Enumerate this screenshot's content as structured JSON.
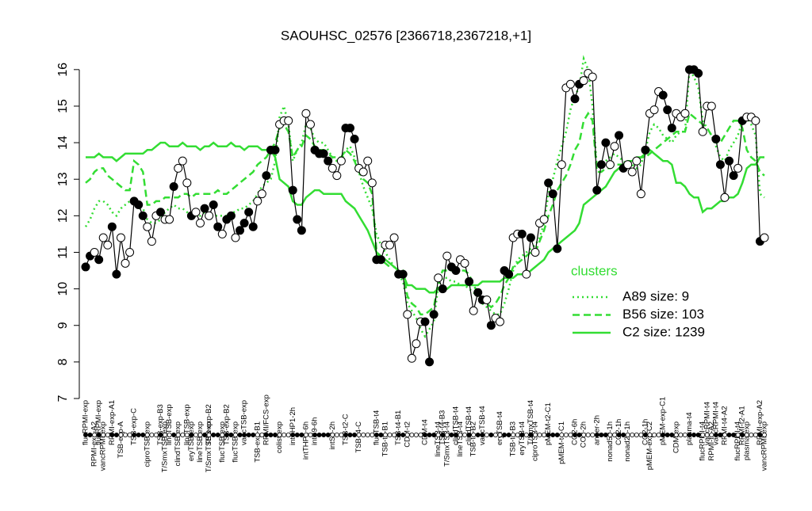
{
  "chart_data": {
    "type": "line",
    "title": "SAOUHSC_02576 [2366718,2367218,+1]",
    "categories": [
      null,
      null,
      "RPMI-exp-A2",
      null,
      "vancRPMI-exp",
      null,
      null,
      null,
      "TSB-exp-A",
      null,
      null,
      null,
      null,
      null,
      "ciproTSB-exp",
      null,
      null,
      null,
      "T/SmxTSB-exp",
      null,
      null,
      "clindTSB-exp",
      null,
      null,
      "eryTSB-exp",
      null,
      "lineTSB-exp",
      null,
      "T/SmxTSB-exp",
      null,
      null,
      "flucTSB-exp",
      null,
      null,
      "flucTSB-exp",
      null,
      null,
      null,
      null,
      "TSB-exp-B1",
      null,
      null,
      null,
      null,
      "colist-exp",
      null,
      null,
      null,
      null,
      null,
      "intTHP1-6h",
      null,
      null,
      null,
      null,
      null,
      "intS9-2h",
      null,
      null,
      null,
      null,
      null,
      "TSB-t4-C",
      null,
      null,
      null,
      null,
      null,
      "TSB-t2-B1",
      null,
      null,
      null,
      null,
      "CDM-t2",
      null,
      null,
      null,
      null,
      null,
      null,
      "lineTSB-t4",
      null,
      "T/SmxTSB-t4",
      null,
      null,
      "lineTSB-t4",
      null,
      null,
      "TSB-t4-B2",
      null,
      null,
      null,
      null,
      null,
      null,
      null,
      null,
      "TSB-t4-B3",
      null,
      "eryTSB-t4",
      null,
      null,
      "ciproTSB-t4",
      null,
      null,
      null,
      null,
      null,
      "pMEM-t4-C1",
      null,
      null,
      null,
      null,
      "CO2-2h",
      null,
      null,
      null,
      null,
      null,
      "nonad50-1h",
      null,
      null,
      null,
      "nonad25-1h",
      null,
      null,
      null,
      null,
      "pMEM-exp-C2",
      null,
      null,
      null,
      null,
      null,
      "CDM-exp",
      null,
      null,
      null,
      null,
      null,
      "flucRPMI-t4",
      null,
      "RPMI-t4-A2",
      null,
      null,
      null,
      null,
      null,
      "flucRPMI-t4",
      null,
      "plasma-exp",
      null,
      null,
      null,
      "vancRPMI-exp"
    ],
    "categories2": [
      "flucRPMI-exp",
      null,
      null,
      "flucRPMI-exp",
      null,
      null,
      "RPMI-exp-A1",
      null,
      null,
      null,
      null,
      "TSB-exp-C",
      null,
      null,
      null,
      null,
      null,
      "TSB-exp-B3",
      null,
      "lineTSB-exp",
      null,
      null,
      null,
      "lineTSB-exp",
      null,
      null,
      null,
      null,
      "TSB-exp-B2",
      null,
      null,
      null,
      "TSB-exp-B2",
      null,
      null,
      null,
      "vancTSB-exp",
      null,
      null,
      null,
      null,
      "RPMI/FCS-exp",
      null,
      null,
      null,
      null,
      null,
      "intTHP1-2h",
      null,
      null,
      null,
      null,
      "intS9-6h",
      null,
      null,
      null,
      null,
      null,
      null,
      "TSB-t2-C",
      null,
      null,
      null,
      null,
      null,
      null,
      "flucTSB-t4",
      null,
      null,
      null,
      null,
      "TSB-t4-B1",
      null,
      null,
      null,
      null,
      null,
      "CDM-t4",
      null,
      null,
      null,
      "TSB-t4-B3",
      null,
      null,
      "clindTSB-t4",
      null,
      null,
      "clindTSB-t4",
      null,
      null,
      "vancTSB-t4",
      null,
      null,
      null,
      "eryTSB-t4",
      null,
      null,
      null,
      null,
      null,
      null,
      "T/SmxTSB-t4",
      null,
      null,
      null,
      "pMEM-t2-C1",
      null,
      null,
      null,
      null,
      null,
      "CO2-6h",
      null,
      null,
      null,
      null,
      "anaer-2h",
      null,
      null,
      null,
      null,
      "CO2-1h",
      null,
      null,
      null,
      null,
      null,
      "CO2-1h",
      null,
      null,
      null,
      "pMEM-exp-C1",
      null,
      null,
      null,
      null,
      null,
      "plasma-t4",
      null,
      null,
      null,
      "vancRPMI-t4",
      null,
      "vancRPMI-t4",
      null,
      "RPMI-t4-A2",
      null,
      null,
      null,
      "RPMI-t2-A1",
      null,
      null,
      null,
      "RPMI-exp-A2",
      null
    ],
    "ylim": [
      7,
      16.3
    ],
    "yticks": [
      7,
      8,
      9,
      10,
      11,
      12,
      13,
      14,
      15,
      16
    ],
    "legend_title": "clusters",
    "series": [
      {
        "color": "#000000",
        "values": [
          10.6,
          10.9,
          11.0,
          10.8,
          11.4,
          11.2,
          11.7,
          10.4,
          11.4,
          10.7,
          11.0,
          12.4,
          12.3,
          12.0,
          11.7,
          11.3,
          12.0,
          12.1,
          11.9,
          11.9,
          12.8,
          13.3,
          13.5,
          12.9,
          12.0,
          12.1,
          11.8,
          12.2,
          12.0,
          12.3,
          11.7,
          11.5,
          11.9,
          12.0,
          11.4,
          11.6,
          11.8,
          12.1,
          11.7,
          12.4,
          12.6,
          13.1,
          13.8,
          13.8,
          14.5,
          14.6,
          14.6,
          12.7,
          11.9,
          11.6,
          14.8,
          14.5,
          13.8,
          13.7,
          13.7,
          13.5,
          13.3,
          13.1,
          13.5,
          14.4,
          14.4,
          14.1,
          13.3,
          13.2,
          13.5,
          12.9,
          10.8,
          10.8,
          11.2,
          11.2,
          11.4,
          10.4,
          10.4,
          9.3,
          8.1,
          8.5,
          9.1,
          9.1,
          8.0,
          9.3,
          10.3,
          10.0,
          10.9,
          10.6,
          10.5,
          10.8,
          10.7,
          10.2,
          9.4,
          9.9,
          9.7,
          9.7,
          9.0,
          9.2,
          9.1,
          10.5,
          10.4,
          11.4,
          11.5,
          11.5,
          10.4,
          11.4,
          11.0,
          11.8,
          11.9,
          12.9,
          12.6,
          11.1,
          13.4,
          15.5,
          15.6,
          15.2,
          15.6,
          15.7,
          15.9,
          15.8,
          12.7,
          13.4,
          14.0,
          13.4,
          13.9,
          14.2,
          13.3,
          13.4,
          13.2,
          13.5,
          12.6,
          13.8,
          14.8,
          14.9,
          15.4,
          15.3,
          14.9,
          14.4,
          14.8,
          14.7,
          14.8,
          16.0,
          16.0,
          15.9,
          14.3,
          15.0,
          15.0,
          14.1,
          13.4,
          12.5,
          13.5,
          13.1,
          13.3,
          14.6,
          14.7,
          14.7,
          14.6,
          11.3,
          11.4
        ],
        "point_colors": [
          "black",
          "black",
          "white",
          "black",
          "white",
          "white",
          "black",
          "black",
          "white",
          "white",
          "white",
          "black",
          "black",
          "black",
          "white",
          "white",
          "white",
          "black",
          "white",
          "white",
          "black",
          "white",
          "white",
          "white",
          "black",
          "white",
          "white",
          "black",
          "white",
          "black",
          "black",
          "white",
          "black",
          "black",
          "white",
          "black",
          "black",
          "black",
          "black",
          "white",
          "white",
          "black",
          "black",
          "black",
          "white",
          "white",
          "white",
          "black",
          "black",
          "black",
          "white",
          "white",
          "black",
          "black",
          "black",
          "black",
          "white",
          "white",
          "white",
          "black",
          "black",
          "black",
          "white",
          "white",
          "white",
          "white",
          "black",
          "black",
          "white",
          "white",
          "white",
          "black",
          "black",
          "white",
          "white",
          "white",
          "white",
          "black",
          "black",
          "black",
          "white",
          "black",
          "white",
          "black",
          "black",
          "white",
          "white",
          "black",
          "white",
          "black",
          "black",
          "white",
          "black",
          "white",
          "white",
          "black",
          "black",
          "white",
          "white",
          "black",
          "white",
          "black",
          "white",
          "white",
          "white",
          "black",
          "black",
          "black",
          "white",
          "white",
          "white",
          "black",
          "black",
          "white",
          "white",
          "white",
          "black",
          "black",
          "black",
          "white",
          "white",
          "black",
          "black",
          "white",
          "white",
          "white",
          "white",
          "black",
          "white",
          "white",
          "white",
          "black",
          "black",
          "black",
          "white",
          "white",
          "white",
          "black",
          "black",
          "black",
          "white",
          "white",
          "white",
          "black",
          "black",
          "white",
          "black",
          "black",
          "white",
          "black",
          "white",
          "white",
          "white",
          "black",
          "white"
        ]
      },
      {
        "name": "A89 size: 9",
        "color": "#33dd33",
        "line_style": "dotted",
        "values": [
          11.7,
          11.9,
          12.2,
          12.4,
          12.4,
          12.3,
          12.1,
          12.0,
          12.2,
          12.3,
          12.4,
          12.3,
          12.2,
          12.2,
          11.9,
          11.8,
          11.8,
          11.9,
          12.1,
          12.2,
          12.3,
          12.2,
          12.2,
          12.1,
          12.0,
          12.0,
          12.0,
          12.1,
          12.0,
          12.0,
          12.0,
          12.0,
          12.0,
          12.1,
          12.1,
          12.2,
          12.2,
          12.3,
          12.4,
          12.6,
          12.8,
          12.9,
          13.0,
          13.5,
          14.7,
          15.0,
          14.5,
          13.5,
          13.8,
          14.0,
          14.5,
          14.4,
          14.1,
          14.0,
          14.0,
          13.8,
          13.6,
          13.5,
          13.5,
          13.8,
          13.9,
          13.6,
          13.2,
          12.8,
          12.5,
          12.2,
          11.5,
          11.2,
          11.0,
          10.8,
          10.6,
          10.4,
          10.2,
          9.6,
          9.4,
          9.2,
          8.9,
          8.7,
          8.9,
          9.1,
          10.1,
          10.3,
          10.3,
          10.2,
          10.2,
          10.1,
          10.1,
          10.0,
          9.9,
          9.8,
          9.6,
          9.5,
          9.4,
          9.3,
          9.3,
          9.6,
          10.0,
          10.5,
          10.8,
          10.9,
          11.0,
          11.1,
          11.2,
          11.4,
          11.8,
          12.6,
          13.0,
          13.5,
          13.9,
          14.3,
          14.9,
          15.3,
          15.5,
          16.3,
          16.0,
          15.0,
          13.3,
          13.4,
          13.5,
          13.6,
          13.7,
          13.6,
          13.5,
          13.4,
          13.4,
          13.3,
          13.4,
          13.8,
          14.3,
          14.5,
          14.4,
          14.2,
          14.1,
          14.0,
          14.2,
          14.3,
          14.3,
          16.0,
          15.8,
          15.5,
          14.6,
          14.4,
          14.2,
          13.9,
          13.6,
          13.5,
          13.8,
          14.0,
          14.2,
          14.6,
          14.7,
          14.5,
          14.2,
          12.6,
          12.5
        ]
      },
      {
        "name": "B56 size: 103",
        "color": "#33dd33",
        "line_style": "dashed",
        "values": [
          12.9,
          13.0,
          13.2,
          13.3,
          13.3,
          13.1,
          13.0,
          12.9,
          12.8,
          12.7,
          12.7,
          13.5,
          13.4,
          13.2,
          12.3,
          12.3,
          12.4,
          12.4,
          12.5,
          12.5,
          12.5,
          12.5,
          12.6,
          12.6,
          12.5,
          12.6,
          12.6,
          12.6,
          12.6,
          12.6,
          12.7,
          12.6,
          12.6,
          12.7,
          12.8,
          12.9,
          13.0,
          13.1,
          13.2,
          13.4,
          13.5,
          13.6,
          13.8,
          14.0,
          14.4,
          14.5,
          14.3,
          13.6,
          13.8,
          13.9,
          14.2,
          14.1,
          13.9,
          13.8,
          13.8,
          13.7,
          13.6,
          13.6,
          13.6,
          13.8,
          13.7,
          13.5,
          13.2,
          13.0,
          12.9,
          12.6,
          11.0,
          10.8,
          10.7,
          10.6,
          10.6,
          10.5,
          10.5,
          9.8,
          9.6,
          9.5,
          9.3,
          9.3,
          9.4,
          9.5,
          10.2,
          10.5,
          10.5,
          10.5,
          10.5,
          10.5,
          10.5,
          10.4,
          10.1,
          9.9,
          9.7,
          9.6,
          9.5,
          9.6,
          9.8,
          10.1,
          10.3,
          10.6,
          10.7,
          10.8,
          10.9,
          11.0,
          11.0,
          11.3,
          11.6,
          12.0,
          12.3,
          12.7,
          12.9,
          13.1,
          13.4,
          13.8,
          14.0,
          14.6,
          14.8,
          14.6,
          13.2,
          13.2,
          13.3,
          13.3,
          13.4,
          13.4,
          13.4,
          13.5,
          13.5,
          13.5,
          13.6,
          13.6,
          13.7,
          13.8,
          13.9,
          14.0,
          14.1,
          14.2,
          14.3,
          14.3,
          14.3,
          14.8,
          14.7,
          14.6,
          14.5,
          14.4,
          14.2,
          14.0,
          14.0,
          14.2,
          14.4,
          14.6,
          14.6,
          14.4,
          13.8,
          13.6,
          13.5,
          13.2,
          13.1
        ]
      },
      {
        "name": "C2 size: 1239",
        "color": "#33dd33",
        "line_style": "solid",
        "values": [
          13.6,
          13.6,
          13.6,
          13.7,
          13.6,
          13.6,
          13.6,
          13.5,
          13.6,
          13.7,
          13.7,
          13.7,
          13.7,
          13.7,
          13.8,
          13.8,
          13.9,
          14.0,
          14.0,
          13.9,
          13.9,
          13.9,
          14.0,
          13.9,
          13.9,
          13.9,
          13.8,
          13.9,
          13.9,
          14.0,
          13.9,
          13.9,
          13.9,
          14.0,
          13.9,
          13.9,
          13.8,
          13.9,
          13.9,
          13.9,
          13.8,
          13.8,
          13.8,
          13.6,
          13.0,
          12.9,
          12.8,
          12.4,
          12.3,
          12.3,
          12.5,
          12.6,
          12.7,
          12.7,
          12.6,
          12.6,
          12.6,
          12.6,
          12.6,
          12.4,
          12.3,
          12.2,
          12.0,
          11.8,
          11.6,
          11.3,
          11.0,
          10.9,
          10.8,
          10.7,
          10.6,
          10.5,
          10.4,
          10.1,
          10.1,
          10.0,
          10.0,
          10.0,
          9.9,
          9.9,
          10.0,
          10.0,
          10.0,
          10.1,
          10.1,
          10.1,
          10.1,
          10.1,
          10.1,
          10.1,
          10.2,
          10.2,
          10.2,
          10.2,
          10.2,
          10.3,
          10.3,
          10.3,
          10.4,
          10.4,
          10.4,
          10.5,
          10.6,
          10.7,
          10.8,
          11.0,
          11.1,
          11.2,
          11.3,
          11.4,
          11.5,
          11.6,
          11.8,
          12.3,
          12.4,
          12.5,
          12.6,
          12.7,
          12.8,
          13.0,
          13.2,
          13.3,
          13.4,
          13.5,
          13.5,
          13.6,
          13.6,
          13.7,
          13.8,
          13.7,
          13.6,
          13.5,
          13.5,
          13.4,
          12.9,
          12.9,
          12.8,
          12.6,
          12.5,
          12.5,
          12.1,
          12.2,
          12.2,
          12.3,
          12.4,
          12.4,
          12.5,
          12.5,
          12.6,
          12.9,
          13.3,
          13.4,
          13.4,
          13.6,
          13.6
        ]
      }
    ]
  }
}
